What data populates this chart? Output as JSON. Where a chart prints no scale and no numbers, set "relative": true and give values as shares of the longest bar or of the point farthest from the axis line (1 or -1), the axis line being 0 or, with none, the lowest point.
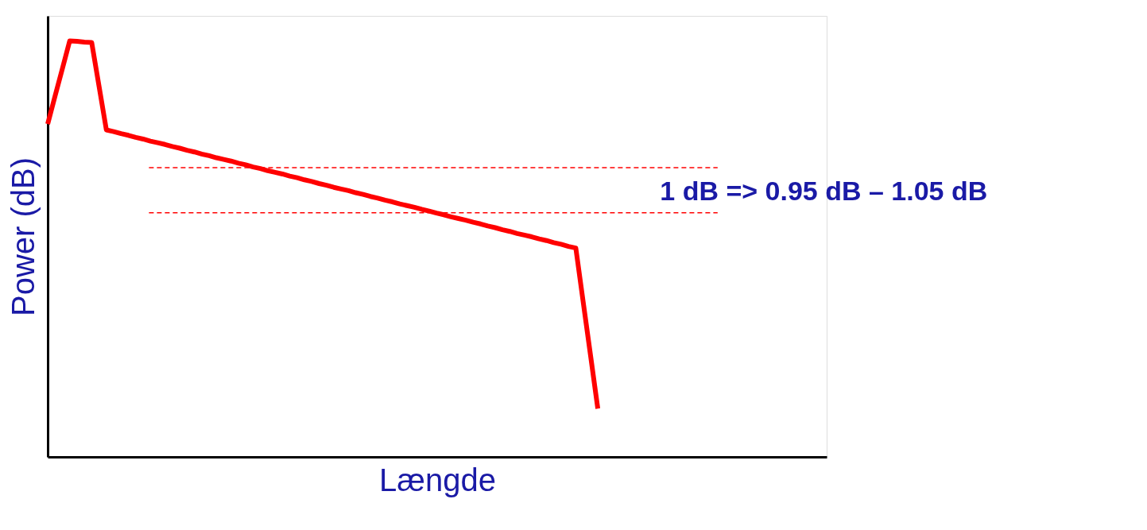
{
  "chart_data": {
    "type": "line",
    "relative": true,
    "xlabel": "Længde",
    "ylabel": "Power (dB)",
    "categories": [
      null,
      null,
      null,
      null,
      null,
      null,
      null,
      null,
      null,
      null,
      null,
      null,
      null,
      null,
      null,
      null,
      null,
      null,
      null,
      null,
      null,
      null,
      null,
      null,
      null,
      null,
      null,
      null,
      null,
      null,
      null,
      null,
      null,
      null,
      null,
      null,
      null,
      null,
      null,
      null,
      null,
      null,
      null,
      null,
      null,
      null,
      null,
      null,
      null,
      null,
      null,
      null,
      null,
      null,
      null,
      null,
      null,
      null,
      null,
      null,
      null,
      null,
      null,
      null,
      null,
      null,
      null,
      null,
      null,
      null,
      null,
      null,
      null,
      null,
      null,
      null
    ],
    "series": [
      {
        "color": "#ff0000",
        "values": [
          0.8,
          0.867,
          0.933,
          1.0,
          0.999,
          0.997,
          0.996,
          0.891,
          0.786,
          0.782,
          0.777,
          0.773,
          0.768,
          0.764,
          0.759,
          0.755,
          0.751,
          0.746,
          0.742,
          0.737,
          0.733,
          0.728,
          0.724,
          0.719,
          0.715,
          0.711,
          0.706,
          0.702,
          0.697,
          0.693,
          0.688,
          0.684,
          0.68,
          0.675,
          0.671,
          0.666,
          0.662,
          0.657,
          0.653,
          0.648,
          0.644,
          0.64,
          0.635,
          0.631,
          0.626,
          0.622,
          0.617,
          0.613,
          0.608,
          0.604,
          0.6,
          0.595,
          0.591,
          0.586,
          0.582,
          0.577,
          0.573,
          0.569,
          0.564,
          0.56,
          0.555,
          0.551,
          0.546,
          0.542,
          0.537,
          0.533,
          0.529,
          0.524,
          0.52,
          0.515,
          0.511,
          0.506,
          0.502,
          0.373,
          0.245,
          0.116
        ]
      }
    ],
    "ref_lines": [
      {
        "axis": "y",
        "value": 0.695,
        "color": "#ff0000",
        "line_style": "dashed"
      },
      {
        "axis": "y",
        "value": 0.587,
        "color": "#ff0000",
        "line_style": "dashed"
      }
    ],
    "annotations": [
      "1 dB => 0.95 dB – 1.05 dB"
    ],
    "tick_labels": false,
    "grid": false,
    "marker": "none",
    "line_style": "solid"
  }
}
